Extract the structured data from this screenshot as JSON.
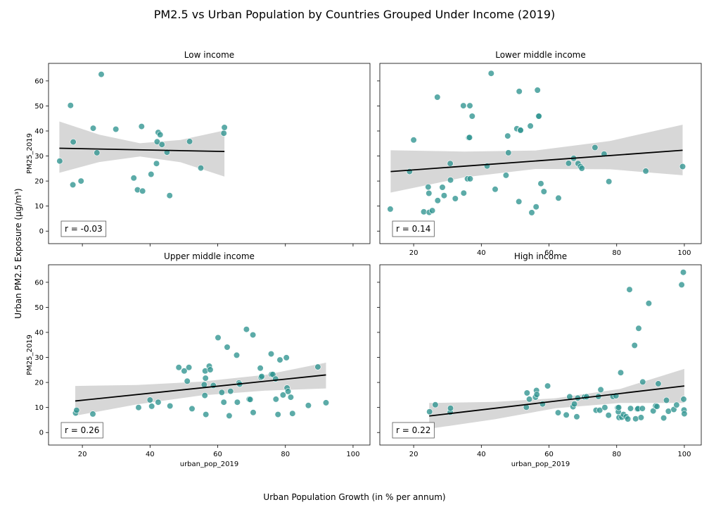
{
  "figure": {
    "title": "PM2.5 vs Urban Population by Countries Grouped Under Income (2019)",
    "supylabel": "Urban PM2.5 Exposure (µg/m³)",
    "supxlabel": "Urban Population Growth (in % per annum)"
  },
  "colors": {
    "point": "#2e9490",
    "line": "#000000",
    "band": "#d3d3d3"
  },
  "chart_data": [
    {
      "type": "scatter",
      "title": "Low income",
      "xlabel": "",
      "ylabel": "PM25_2019",
      "xlim": [
        10,
        105
      ],
      "ylim": [
        -5,
        67
      ],
      "xticks": [
        20,
        40,
        60,
        80,
        100
      ],
      "yticks": [
        0,
        10,
        20,
        30,
        40,
        50,
        60
      ],
      "show_xticklabels": false,
      "show_yticklabels": true,
      "r_label": "r = -0.03",
      "fit": {
        "x": [
          13.2,
          62
        ],
        "y": [
          33.1,
          31.8
        ]
      },
      "band": {
        "x": [
          13.2,
          25,
          37,
          49,
          62
        ],
        "upper": [
          43.8,
          38.5,
          35.1,
          36.4,
          40.2
        ],
        "lower": [
          23.3,
          27.6,
          29.8,
          27.5,
          21.8
        ]
      },
      "points": {
        "x": [
          13.3,
          16.5,
          17.2,
          17.3,
          19.6,
          23.2,
          24.3,
          25.6,
          29.9,
          35.2,
          36.3,
          37.5,
          37.8,
          40.3,
          41.9,
          42.1,
          42.4,
          43.0,
          43.5,
          45.0,
          45.8,
          51.7,
          55.0,
          61.8,
          62.0
        ],
        "y": [
          28.0,
          50.2,
          18.5,
          35.6,
          20.0,
          41.1,
          31.3,
          62.6,
          40.7,
          21.2,
          16.5,
          41.8,
          16.0,
          22.7,
          27.0,
          35.7,
          39.4,
          38.5,
          34.6,
          31.5,
          14.2,
          35.8,
          25.2,
          39.1,
          41.4
        ]
      }
    },
    {
      "type": "scatter",
      "title": "Lower middle income",
      "xlabel": "",
      "ylabel": "",
      "xlim": [
        10,
        105
      ],
      "ylim": [
        -5,
        67
      ],
      "xticks": [
        20,
        40,
        60,
        80,
        100
      ],
      "yticks": [
        0,
        10,
        20,
        30,
        40,
        50,
        60
      ],
      "show_xticklabels": true,
      "show_yticklabels": false,
      "r_label": "r = 0.14",
      "fit": {
        "x": [
          13.2,
          99.5
        ],
        "y": [
          23.8,
          32.3
        ]
      },
      "band": {
        "x": [
          13.2,
          35,
          56,
          78,
          99.5
        ],
        "upper": [
          32.3,
          31.8,
          32.2,
          36.0,
          42.5
        ],
        "lower": [
          15.4,
          21.5,
          24.8,
          24.7,
          22.3
        ]
      },
      "points": {
        "x": [
          13.1,
          18.8,
          20.0,
          23.0,
          24.3,
          24.5,
          24.6,
          25.5,
          27.0,
          27.1,
          28.5,
          29.0,
          30.8,
          30.9,
          32.3,
          34.7,
          34.8,
          35.9,
          36.3,
          36.5,
          36.6,
          36.7,
          37.3,
          41.7,
          42.9,
          44.1,
          47.3,
          47.8,
          48.0,
          50.5,
          51.1,
          51.2,
          51.5,
          51.6,
          54.5,
          54.9,
          56.2,
          56.6,
          56.9,
          57.0,
          57.6,
          58.5,
          62.8,
          65.8,
          67.3,
          68.6,
          69.3,
          69.7,
          73.6,
          76.3,
          77.7,
          88.6,
          99.5
        ],
        "y": [
          8.8,
          23.8,
          36.4,
          7.7,
          17.6,
          15.1,
          7.5,
          8.2,
          53.5,
          12.2,
          17.5,
          14.2,
          27.0,
          20.4,
          13.0,
          50.1,
          15.2,
          20.9,
          37.3,
          37.4,
          50.1,
          20.9,
          45.9,
          26.0,
          63.0,
          16.7,
          22.3,
          38.0,
          31.3,
          40.9,
          11.8,
          55.8,
          40.3,
          40.3,
          42.0,
          7.4,
          9.7,
          56.3,
          45.9,
          45.9,
          19.0,
          15.8,
          13.2,
          27.1,
          29.1,
          27.0,
          25.8,
          25.1,
          33.4,
          30.8,
          19.8,
          24.0,
          25.8
        ]
      }
    },
    {
      "type": "scatter",
      "title": "Upper middle income",
      "xlabel": "urban_pop_2019",
      "ylabel": "PM25_2019",
      "xlim": [
        10,
        105
      ],
      "ylim": [
        -5,
        67
      ],
      "xticks": [
        20,
        40,
        60,
        80,
        100
      ],
      "yticks": [
        0,
        10,
        20,
        30,
        40,
        50,
        60
      ],
      "show_xticklabels": true,
      "show_yticklabels": true,
      "r_label": "r = 0.26",
      "fit": {
        "x": [
          17.9,
          92
        ],
        "y": [
          12.6,
          23.0
        ]
      },
      "band": {
        "x": [
          17.9,
          36,
          55,
          74,
          92
        ],
        "upper": [
          18.6,
          19.0,
          20.3,
          23.0,
          27.9
        ],
        "lower": [
          6.7,
          11.2,
          14.8,
          16.7,
          17.6
        ]
      },
      "points": {
        "x": [
          18.0,
          18.3,
          23.1,
          36.6,
          40.0,
          40.5,
          42.4,
          45.9,
          48.5,
          50.1,
          51.0,
          51.5,
          52.4,
          56.0,
          56.2,
          56.3,
          56.4,
          56.5,
          57.5,
          57.8,
          58.7,
          60.1,
          61.2,
          61.8,
          62.8,
          63.4,
          63.8,
          65.6,
          65.8,
          66.3,
          66.5,
          68.5,
          69.3,
          69.6,
          70.4,
          70.5,
          72.6,
          72.8,
          73.0,
          75.8,
          75.9,
          76.3,
          77.1,
          77.2,
          77.8,
          78.4,
          79.3,
          80.3,
          80.5,
          80.8,
          81.6,
          82.1,
          86.8,
          89.6,
          92.0
        ],
        "y": [
          7.8,
          8.9,
          7.4,
          10.0,
          13.0,
          10.5,
          12.1,
          10.6,
          26.0,
          24.6,
          20.5,
          26.0,
          9.5,
          19.1,
          14.8,
          24.6,
          21.7,
          7.2,
          26.5,
          25.1,
          18.8,
          37.9,
          16.0,
          12.1,
          34.1,
          6.7,
          16.5,
          30.9,
          12.1,
          19.8,
          19.3,
          41.2,
          13.3,
          13.2,
          39.0,
          8.0,
          25.7,
          22.0,
          22.4,
          31.4,
          23.2,
          23.2,
          21.4,
          13.3,
          7.2,
          29.0,
          15.0,
          29.9,
          17.8,
          16.4,
          14.1,
          7.6,
          10.8,
          26.2,
          11.9
        ]
      }
    },
    {
      "type": "scatter",
      "title": "High income",
      "xlabel": "urban_pop_2019",
      "ylabel": "",
      "xlim": [
        10,
        105
      ],
      "ylim": [
        -5,
        67
      ],
      "xticks": [
        20,
        40,
        60,
        80,
        100
      ],
      "yticks": [
        0,
        10,
        20,
        30,
        40,
        50,
        60
      ],
      "show_xticklabels": true,
      "show_yticklabels": false,
      "r_label": "r = 0.22",
      "fit": {
        "x": [
          24.6,
          100
        ],
        "y": [
          6.6,
          18.6
        ]
      },
      "band": {
        "x": [
          24.6,
          44,
          62,
          81,
          100
        ],
        "upper": [
          11.8,
          12.2,
          13.7,
          17.4,
          25.4
        ],
        "lower": [
          1.5,
          5.3,
          9.7,
          11.8,
          11.8
        ]
      },
      "points": {
        "x": [
          24.7,
          26.4,
          30.8,
          30.9,
          53.3,
          53.5,
          54.2,
          56.0,
          56.3,
          56.4,
          58.1,
          59.6,
          62.7,
          65.1,
          66.1,
          67.1,
          67.5,
          68.2,
          68.5,
          70.5,
          71.1,
          73.9,
          74.6,
          75.0,
          75.3,
          76.5,
          77.6,
          78.9,
          79.8,
          80.3,
          80.5,
          80.6,
          80.7,
          81.2,
          81.5,
          82.0,
          82.8,
          83.3,
          83.8,
          84.1,
          85.3,
          85.6,
          86.1,
          86.3,
          86.5,
          87.2,
          87.6,
          87.7,
          89.5,
          90.8,
          91.5,
          91.9,
          92.3,
          93.9,
          94.7,
          95.3,
          96.9,
          97.7,
          99.2,
          99.7,
          99.8,
          99.9,
          100.0
        ],
        "y": [
          8.3,
          11.1,
          8.1,
          9.7,
          10.1,
          15.8,
          13.3,
          14.1,
          16.8,
          15.2,
          11.4,
          18.6,
          7.9,
          7.0,
          14.3,
          10.3,
          11.4,
          6.3,
          13.8,
          14.2,
          14.3,
          8.9,
          14.4,
          8.9,
          17.1,
          10.0,
          6.9,
          14.4,
          14.7,
          9.9,
          8.3,
          10.0,
          6.0,
          23.9,
          6.1,
          7.2,
          6.3,
          5.4,
          57.1,
          9.6,
          34.8,
          5.5,
          9.4,
          9.5,
          41.6,
          6.0,
          9.6,
          20.2,
          51.6,
          8.6,
          10.6,
          10.4,
          19.5,
          5.8,
          12.9,
          8.5,
          9.2,
          11.0,
          59.0,
          64.0,
          13.3,
          9.0,
          7.5
        ]
      }
    }
  ]
}
